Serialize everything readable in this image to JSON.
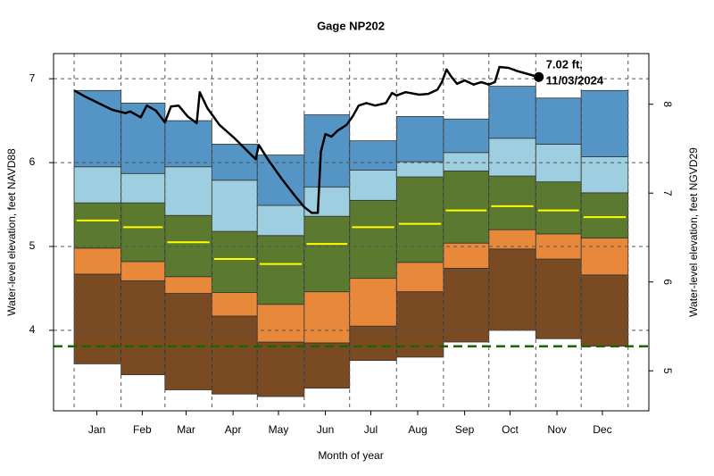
{
  "chart_data": {
    "type": "band",
    "title": "Gage NP202",
    "x_label": "Month of year",
    "y_label": "Water-level elevation, feet NAVD88",
    "y2_label": "Water-level elevation, feet NGVD29",
    "xlim": [
      -13.6,
      379.7
    ],
    "xticks": [
      {
        "value": 15,
        "label": "Jan"
      },
      {
        "value": 45,
        "label": "Feb"
      },
      {
        "value": 74,
        "label": "Mar"
      },
      {
        "value": 105,
        "label": "Apr"
      },
      {
        "value": 135,
        "label": "May"
      },
      {
        "value": 166,
        "label": "Jun"
      },
      {
        "value": 196,
        "label": "Jul"
      },
      {
        "value": 227,
        "label": "Aug"
      },
      {
        "value": 258,
        "label": "Sep"
      },
      {
        "value": 288,
        "label": "Oct"
      },
      {
        "value": 319,
        "label": "Nov"
      },
      {
        "value": 349,
        "label": "Dec"
      }
    ],
    "xgrid": [
      0,
      31,
      60,
      91,
      121,
      152,
      182,
      213,
      244,
      274,
      305,
      335,
      366
    ],
    "ylim": [
      3.04,
      7.3
    ],
    "yticks": [
      4,
      5,
      6,
      7
    ],
    "y2lim": [
      4.55,
      8.57
    ],
    "y2ticks": [
      5,
      6,
      7,
      8
    ],
    "grid": true,
    "band_colors": [
      "#7a4a22",
      "#e8883a",
      "#5b7a2f",
      "#9ecfe0",
      "#5595c5"
    ],
    "band_edges": [
      [
        3.6,
        3.47,
        3.29,
        3.24,
        3.21,
        3.31,
        3.64,
        3.68,
        3.86,
        4.0,
        3.9,
        3.81
      ],
      [
        4.67,
        4.59,
        4.44,
        4.17,
        3.86,
        3.85,
        4.05,
        4.46,
        4.74,
        4.97,
        4.85,
        4.66
      ],
      [
        4.98,
        4.82,
        4.64,
        4.45,
        4.31,
        4.46,
        4.62,
        4.81,
        5.04,
        5.2,
        5.15,
        5.1
      ],
      [
        5.52,
        5.52,
        5.37,
        5.18,
        5.13,
        5.36,
        5.55,
        5.83,
        5.9,
        5.84,
        5.77,
        5.64
      ],
      [
        5.95,
        5.87,
        5.95,
        5.79,
        5.49,
        5.71,
        5.91,
        6.01,
        6.12,
        6.29,
        6.22,
        6.07
      ],
      [
        6.86,
        6.71,
        6.5,
        6.22,
        6.09,
        6.57,
        6.26,
        6.55,
        6.52,
        6.91,
        6.77,
        6.86
      ]
    ],
    "median": {
      "color": "#ffff00",
      "values": [
        5.31,
        5.23,
        5.05,
        4.85,
        4.79,
        5.03,
        5.23,
        5.27,
        5.43,
        5.48,
        5.43,
        5.35
      ]
    },
    "reference_line": {
      "value": 3.81,
      "color": "#1a6600"
    },
    "series": [
      {
        "color": "#000000",
        "x": [
          0,
          7,
          16,
          25,
          34,
          37,
          44,
          48,
          54,
          60,
          64,
          69,
          75,
          81,
          83,
          88,
          96,
          106,
          116,
          120,
          122,
          128,
          137,
          146,
          152,
          157,
          161,
          163,
          166,
          170,
          174,
          180,
          184,
          188,
          193,
          199,
          206,
          210,
          213,
          219,
          228,
          234,
          240,
          243,
          246,
          249,
          253,
          258,
          264,
          269,
          274,
          278,
          281,
          287,
          293,
          299,
          307
        ],
        "values": [
          6.86,
          6.79,
          6.71,
          6.63,
          6.59,
          6.61,
          6.54,
          6.68,
          6.62,
          6.48,
          6.67,
          6.68,
          6.55,
          6.47,
          6.84,
          6.65,
          6.45,
          6.29,
          6.11,
          6.04,
          6.21,
          6.04,
          5.81,
          5.6,
          5.47,
          5.4,
          5.4,
          6.13,
          6.34,
          6.31,
          6.38,
          6.45,
          6.55,
          6.68,
          6.71,
          6.68,
          6.71,
          6.83,
          6.8,
          6.84,
          6.81,
          6.82,
          6.87,
          6.96,
          7.11,
          7.03,
          6.94,
          6.98,
          6.93,
          6.96,
          6.93,
          6.96,
          7.14,
          7.13,
          7.09,
          7.06,
          7.02
        ]
      }
    ],
    "current": {
      "x": 307,
      "value": 7.02,
      "value_label": "7.02 ft.",
      "date": "11/03/2024"
    }
  }
}
